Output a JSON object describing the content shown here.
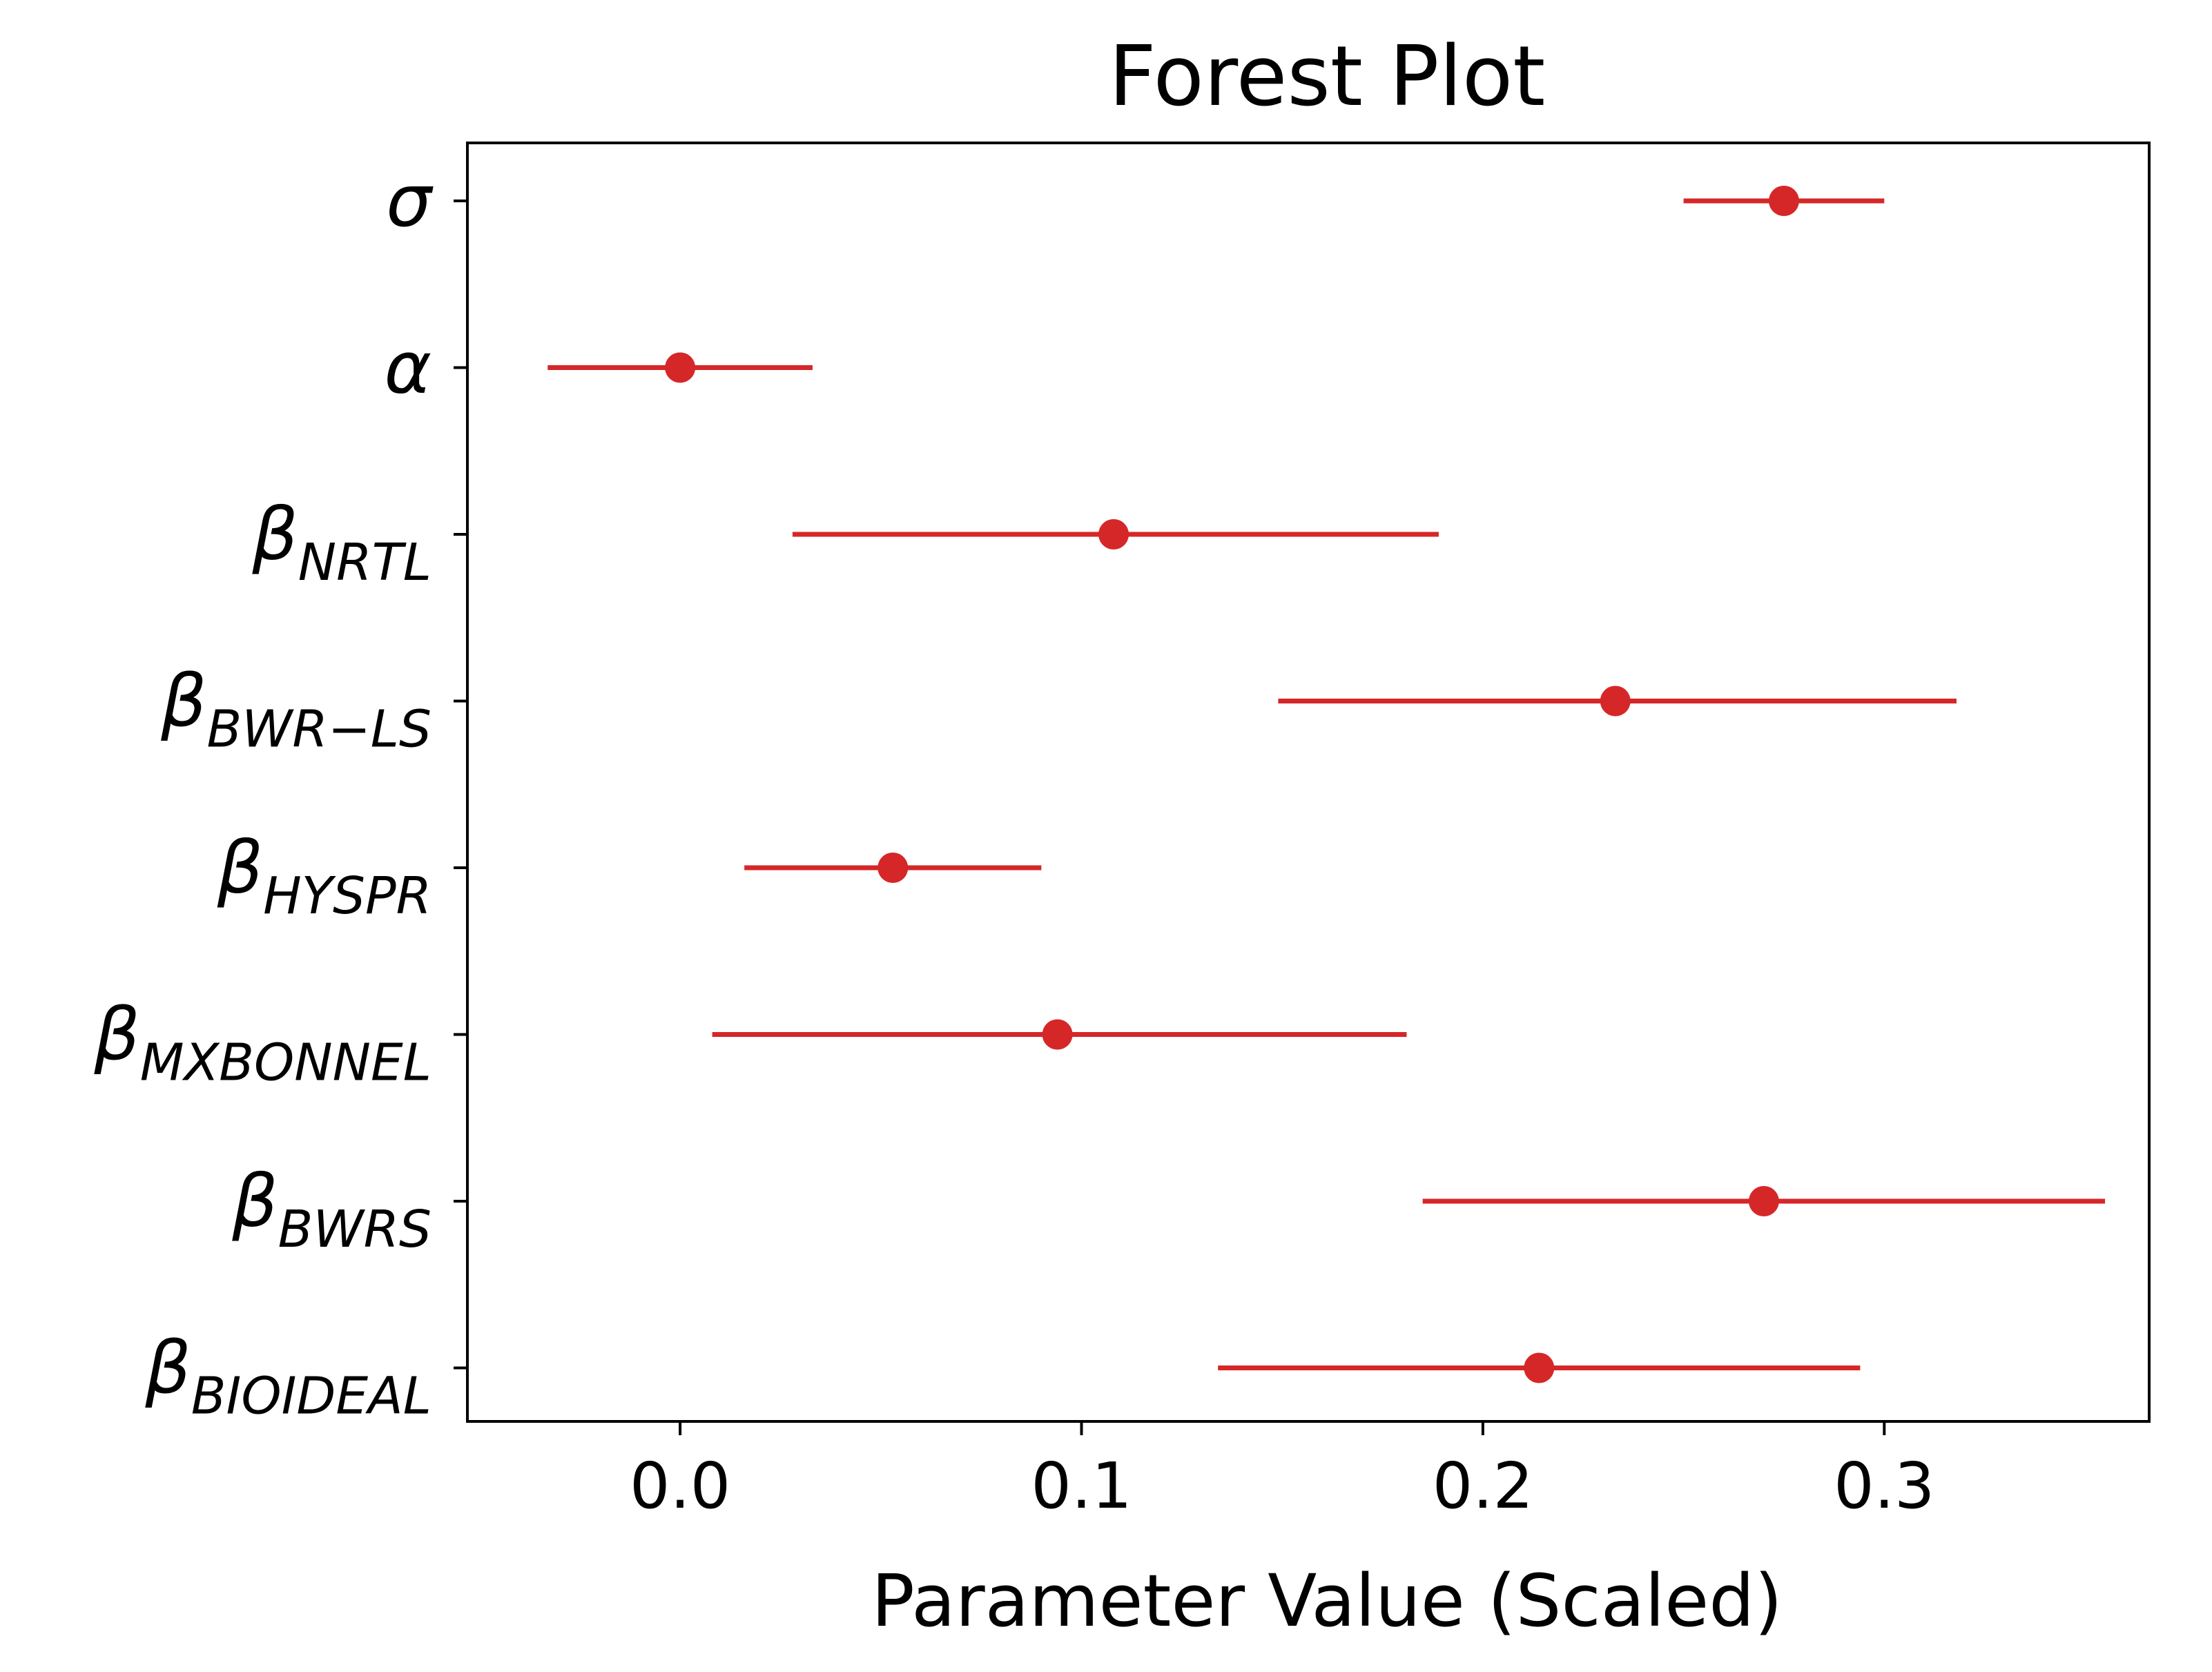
{
  "chart_data": {
    "type": "forest",
    "title": "Forest Plot",
    "xlabel": "Parameter Value (Scaled)",
    "ylabel": "",
    "xlim": [
      -0.053,
      0.366
    ],
    "xticks": [
      0.0,
      0.1,
      0.2,
      0.3
    ],
    "xtick_labels": [
      "0.0",
      "0.1",
      "0.2",
      "0.3"
    ],
    "grid": false,
    "color": "#d62728",
    "parameters": [
      {
        "symbol": "σ",
        "subscript": "",
        "mean": 0.275,
        "lower": 0.25,
        "upper": 0.3
      },
      {
        "symbol": "α",
        "subscript": "",
        "mean": 0.0,
        "lower": -0.033,
        "upper": 0.033
      },
      {
        "symbol": "β",
        "subscript": "NRTL",
        "mean": 0.108,
        "lower": 0.028,
        "upper": 0.189
      },
      {
        "symbol": "β",
        "subscript": "BWR−LS",
        "mean": 0.233,
        "lower": 0.149,
        "upper": 0.318
      },
      {
        "symbol": "β",
        "subscript": "HYSPR",
        "mean": 0.053,
        "lower": 0.016,
        "upper": 0.09
      },
      {
        "symbol": "β",
        "subscript": "MXBONNEL",
        "mean": 0.094,
        "lower": 0.008,
        "upper": 0.181
      },
      {
        "symbol": "β",
        "subscript": "BWRS",
        "mean": 0.27,
        "lower": 0.185,
        "upper": 0.355
      },
      {
        "symbol": "β",
        "subscript": "BIOIDEAL",
        "mean": 0.214,
        "lower": 0.134,
        "upper": 0.294
      }
    ]
  }
}
